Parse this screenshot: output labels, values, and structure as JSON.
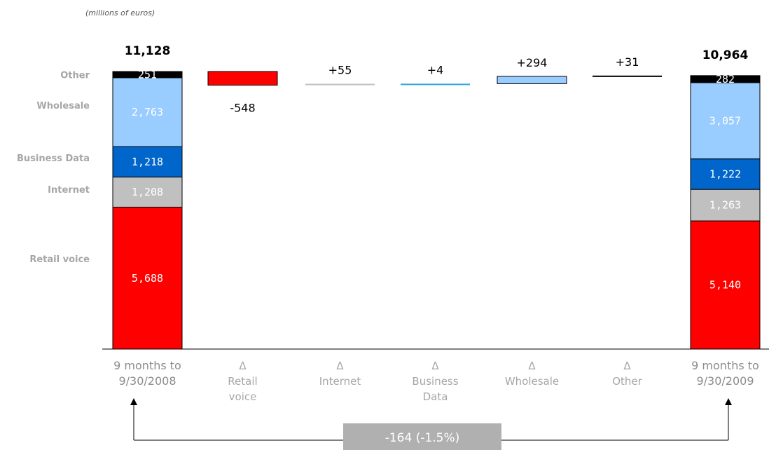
{
  "unit_note": "(millions of euros)",
  "segment_labels": [
    "Retail voice",
    "Internet",
    "Business Data",
    "Wholesale",
    "Other"
  ],
  "colors": {
    "Retail voice": "#ff0000",
    "Internet": "#c0c0c0",
    "Business Data": "#0066cc",
    "Wholesale": "#99ccff",
    "Other": "#000000",
    "delta_business_data": "#29a8e0",
    "summary_box": "#b0b0b0"
  },
  "chart_data": {
    "type": "bar",
    "subtype": "waterfall",
    "categories": [
      [
        "9 months to",
        "9/30/2008"
      ],
      [
        "Δ",
        "Retail",
        "voice"
      ],
      [
        "Δ",
        "Internet"
      ],
      [
        "Δ",
        "Business",
        "Data"
      ],
      [
        "Δ",
        "Wholesale"
      ],
      [
        "Δ",
        "Other"
      ],
      [
        "9 months to",
        "9/30/2009"
      ]
    ],
    "start": {
      "total_label": "11,128",
      "segments": [
        {
          "name": "Retail voice",
          "value": 5688,
          "label": "5,688"
        },
        {
          "name": "Internet",
          "value": 1208,
          "label": "1,208"
        },
        {
          "name": "Business Data",
          "value": 1218,
          "label": "1,218"
        },
        {
          "name": "Wholesale",
          "value": 2763,
          "label": "2,763"
        },
        {
          "name": "Other",
          "value": 251,
          "label": "251"
        }
      ]
    },
    "deltas": [
      {
        "name": "Retail voice",
        "value": -548,
        "label": "-548"
      },
      {
        "name": "Internet",
        "value": 55,
        "label": "+55"
      },
      {
        "name": "Business Data",
        "value": 4,
        "label": "+4"
      },
      {
        "name": "Wholesale",
        "value": 294,
        "label": "+294"
      },
      {
        "name": "Other",
        "value": 31,
        "label": "+31"
      }
    ],
    "end": {
      "total_label": "10,964",
      "segments": [
        {
          "name": "Retail voice",
          "value": 5140,
          "label": "5,140"
        },
        {
          "name": "Internet",
          "value": 1263,
          "label": "1,263"
        },
        {
          "name": "Business Data",
          "value": 1222,
          "label": "1,222"
        },
        {
          "name": "Wholesale",
          "value": 3057,
          "label": "3,057"
        },
        {
          "name": "Other",
          "value": 282,
          "label": "282"
        }
      ]
    },
    "summary": "-164 (-1.5%)",
    "ylim": [
      0,
      11128
    ],
    "grid": false,
    "legend": "none"
  }
}
